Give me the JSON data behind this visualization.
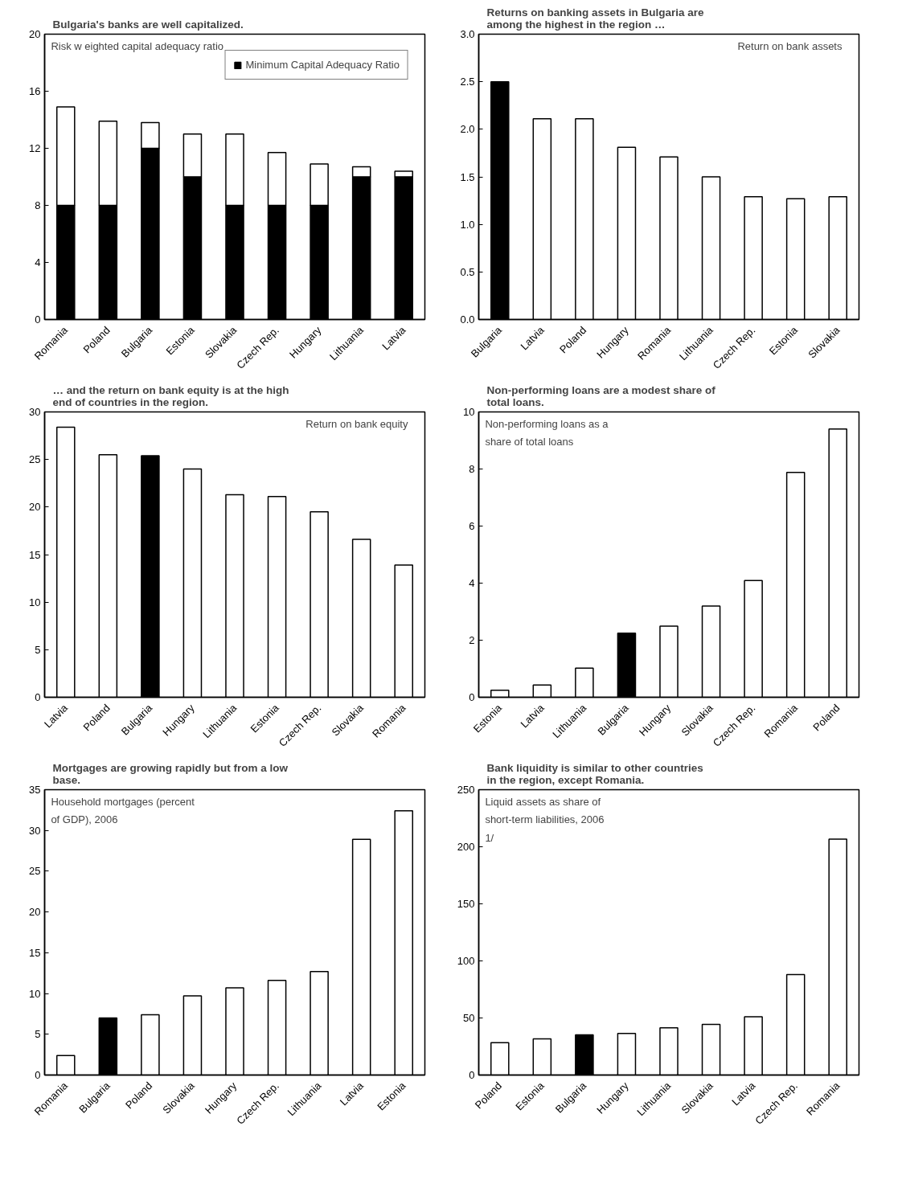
{
  "chart_data": [
    {
      "type": "bar",
      "title": "Bulgaria's banks are well capitalized.",
      "categories": [
        "Romania",
        "Poland",
        "Bulgaria",
        "Estonia",
        "Slovakia",
        "Czech Rep.",
        "Hungary",
        "Lithuania",
        "Latvia"
      ],
      "stacked": true,
      "series": [
        {
          "name": "Minimum Capital Adequacy Ratio",
          "color": "#000000",
          "values": [
            8,
            8,
            12,
            10,
            8,
            8,
            8,
            10,
            10
          ]
        },
        {
          "color": "#ffffff",
          "values": [
            6.9,
            5.9,
            1.8,
            3.0,
            5.0,
            3.7,
            2.9,
            0.7,
            0.4
          ]
        }
      ],
      "ylim": [
        0,
        20
      ],
      "yticks": [
        0,
        4,
        8,
        12,
        16,
        20
      ],
      "legend": "top right",
      "grid": false,
      "annotations": [
        "Risk w eighted capital adequacy ratio"
      ]
    },
    {
      "type": "bar",
      "title": "Returns on banking assets in Bulgaria are among the highest in the region …",
      "categories": [
        "Bulgaria",
        "Latvia",
        "Poland",
        "Hungary",
        "Romania",
        "Lithuania",
        "Czech Rep.",
        "Estonia",
        "Slovakia"
      ],
      "values": [
        2.5,
        2.11,
        2.11,
        1.81,
        1.71,
        1.5,
        1.29,
        1.27,
        1.29
      ],
      "colors": [
        "#000000",
        "#ffffff",
        "#ffffff",
        "#ffffff",
        "#ffffff",
        "#ffffff",
        "#ffffff",
        "#ffffff",
        "#ffffff"
      ],
      "ylim": [
        0,
        3.0
      ],
      "yticks": [
        {
          "value": 0,
          "label": "0.0"
        },
        0.5,
        {
          "value": 1,
          "label": "1.0"
        },
        1.5,
        {
          "value": 2,
          "label": "2.0"
        },
        2.5,
        {
          "value": 3,
          "label": "3.0"
        }
      ],
      "grid": false,
      "annotations": [
        "Return on bank assets"
      ]
    },
    {
      "type": "bar",
      "title": "… and the return on bank equity is at the high end of countries in the region.",
      "categories": [
        "Latvia",
        "Poland",
        "Bulgaria",
        "Hungary",
        "Lithuania",
        "Estonia",
        "Czech Rep.",
        "Slovakia",
        "Romania"
      ],
      "values": [
        28.4,
        25.5,
        25.4,
        24.0,
        21.3,
        21.1,
        19.5,
        16.6,
        13.9
      ],
      "colors": [
        "#ffffff",
        "#ffffff",
        "#000000",
        "#ffffff",
        "#ffffff",
        "#ffffff",
        "#ffffff",
        "#ffffff",
        "#ffffff"
      ],
      "ylim": [
        0,
        30
      ],
      "yticks": [
        0,
        5,
        10,
        15,
        20,
        25,
        30
      ],
      "grid": false,
      "annotations": [
        "Return on bank equity"
      ]
    },
    {
      "type": "bar",
      "title": "Non-performing loans are a modest share of total loans.",
      "categories": [
        "Estonia",
        "Latvia",
        "Lithuania",
        "Bulgaria",
        "Hungary",
        "Slovakia",
        "Czech Rep.",
        "Romania",
        "Poland"
      ],
      "values": [
        0.25,
        0.43,
        1.02,
        2.25,
        2.49,
        3.2,
        4.09,
        7.88,
        9.4
      ],
      "colors": [
        "#ffffff",
        "#ffffff",
        "#ffffff",
        "#000000",
        "#ffffff",
        "#ffffff",
        "#ffffff",
        "#ffffff",
        "#ffffff"
      ],
      "ylim": [
        0,
        10
      ],
      "yticks": [
        0,
        2,
        4,
        6,
        8,
        10
      ],
      "grid": false,
      "annotations": [
        "Non-performing loans as a share of total loans"
      ]
    },
    {
      "type": "bar",
      "title": "Mortgages are growing rapidly but from a low base.",
      "categories": [
        "Romania",
        "Bulgaria",
        "Poland",
        "Slovakia",
        "Hungary",
        "Czech Rep.",
        "Lithuania",
        "Latvia",
        "Estonia"
      ],
      "values": [
        2.4,
        7.0,
        7.4,
        9.7,
        10.7,
        11.6,
        12.7,
        28.9,
        32.4
      ],
      "colors": [
        "#ffffff",
        "#000000",
        "#ffffff",
        "#ffffff",
        "#ffffff",
        "#ffffff",
        "#ffffff",
        "#ffffff",
        "#ffffff"
      ],
      "ylim": [
        0,
        35
      ],
      "yticks": [
        0,
        5,
        10,
        15,
        20,
        25,
        30,
        35
      ],
      "grid": false,
      "annotations": [
        "Household mortgages (percent of GDP), 2006"
      ]
    },
    {
      "type": "bar",
      "title": "Bank liquidity is similar to other countries in the region, except Romania.",
      "categories": [
        "Poland",
        "Estonia",
        "Bulgaria",
        "Hungary",
        "Lithuania",
        "Slovakia",
        "Latvia",
        "Czech Rep.",
        "Romania"
      ],
      "values": [
        28.4,
        31.7,
        35.2,
        36.4,
        41.3,
        44.3,
        51,
        88,
        206.7
      ],
      "colors": [
        "#ffffff",
        "#ffffff",
        "#000000",
        "#ffffff",
        "#ffffff",
        "#ffffff",
        "#ffffff",
        "#ffffff",
        "#ffffff"
      ],
      "ylim": [
        0,
        250
      ],
      "yticks": [
        0,
        50,
        100,
        150,
        200,
        250
      ],
      "grid": false,
      "annotations": [
        "Liquid assets as share of short-term liabilities, 2006 1/"
      ]
    }
  ]
}
